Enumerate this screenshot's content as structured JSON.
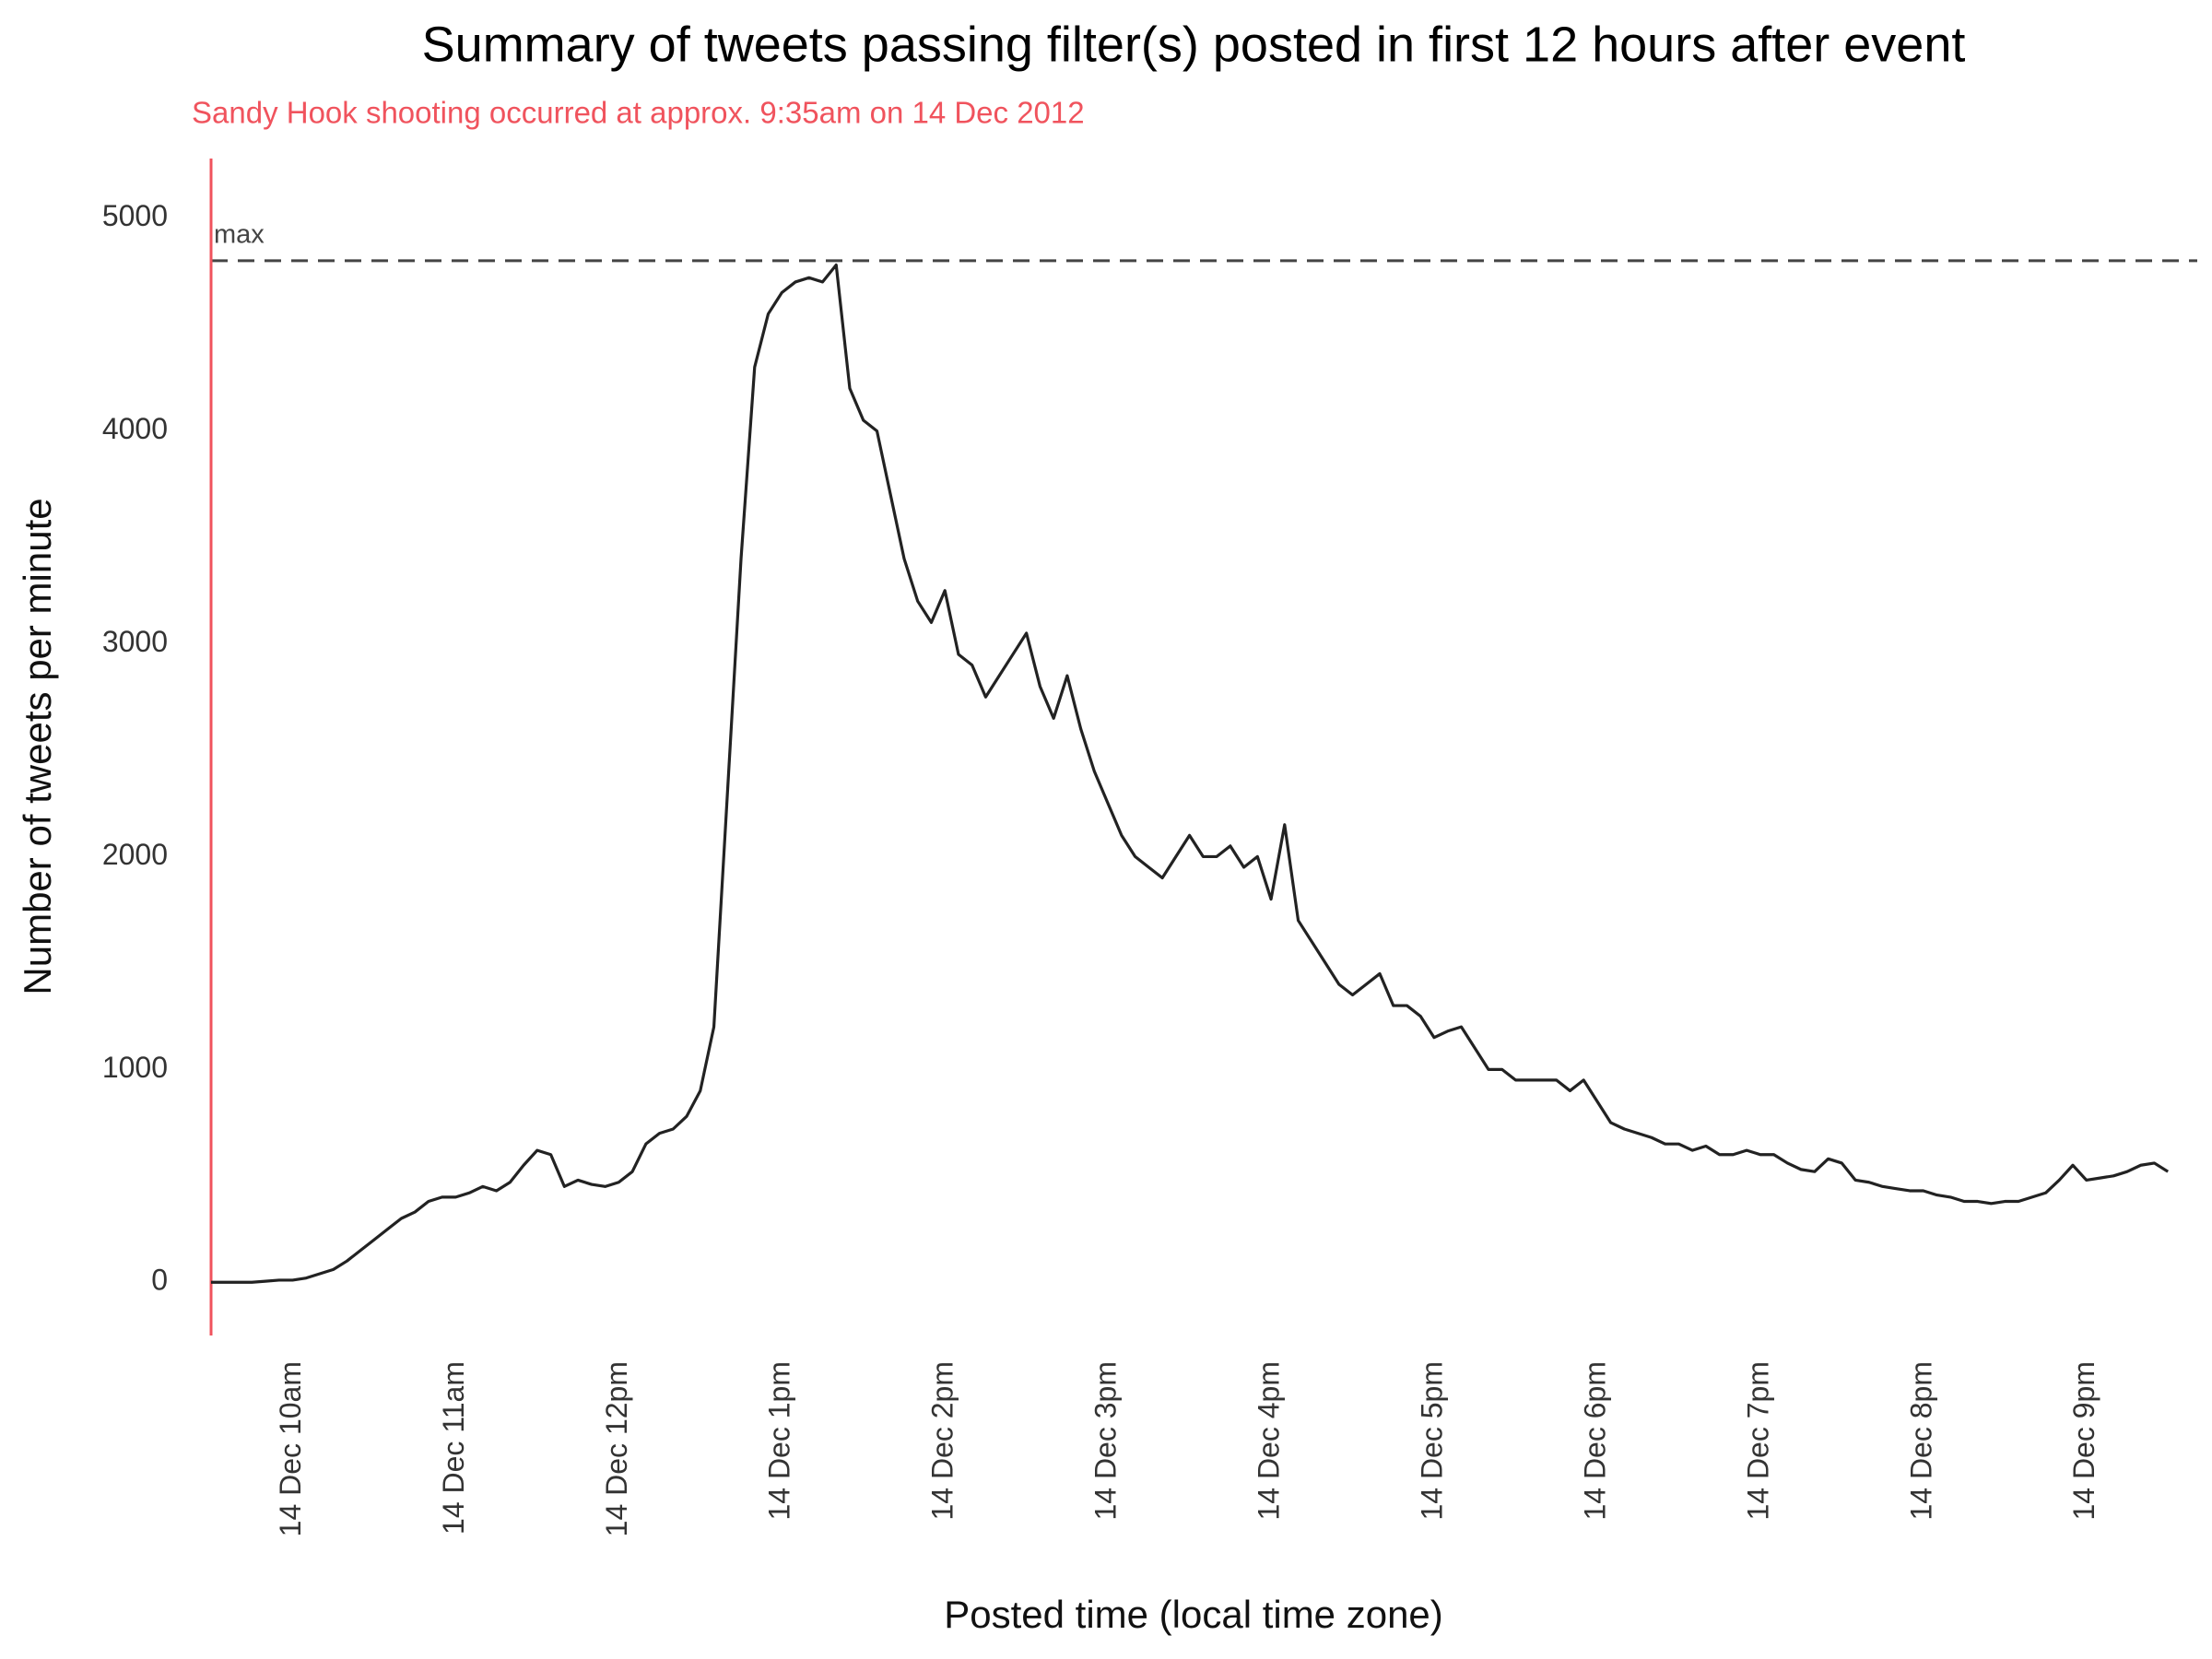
{
  "chart_data": {
    "type": "line",
    "title": "Summary of tweets passing filter(s) posted in first 12 hours after event",
    "subtitle": "Sandy Hook shooting occurred at approx.  9:35am on 14 Dec 2012",
    "x_label": "Posted time (local time zone)",
    "y_label": "Number of tweets per minute",
    "color": "#222222",
    "event_color": "#f0535d",
    "max_line": 4800,
    "max_label": "max",
    "grid": false,
    "xlim": [
      570,
      1294
    ],
    "ylim": [
      -250,
      5280
    ],
    "yticks": [
      0,
      1000,
      2000,
      3000,
      4000,
      5000
    ],
    "xticks": [
      {
        "value": 600,
        "label": "14 Dec 10am"
      },
      {
        "value": 660,
        "label": "14 Dec 11am"
      },
      {
        "value": 720,
        "label": "14 Dec 12pm"
      },
      {
        "value": 780,
        "label": "14 Dec  1pm"
      },
      {
        "value": 840,
        "label": "14 Dec  2pm"
      },
      {
        "value": 900,
        "label": "14 Dec  3pm"
      },
      {
        "value": 960,
        "label": "14 Dec  4pm"
      },
      {
        "value": 1020,
        "label": "14 Dec  5pm"
      },
      {
        "value": 1080,
        "label": "14 Dec  6pm"
      },
      {
        "value": 1140,
        "label": "14 Dec  7pm"
      },
      {
        "value": 1200,
        "label": "14 Dec  8pm"
      },
      {
        "value": 1260,
        "label": "14 Dec  9pm"
      }
    ],
    "x": [
      570,
      575,
      580,
      585,
      590,
      595,
      600,
      605,
      610,
      615,
      620,
      625,
      630,
      635,
      640,
      645,
      650,
      655,
      660,
      665,
      670,
      675,
      680,
      685,
      690,
      695,
      700,
      705,
      710,
      715,
      720,
      725,
      730,
      735,
      740,
      745,
      750,
      755,
      760,
      765,
      770,
      775,
      780,
      785,
      790,
      795,
      800,
      805,
      810,
      815,
      820,
      825,
      830,
      835,
      840,
      845,
      850,
      855,
      860,
      865,
      870,
      875,
      880,
      885,
      890,
      895,
      900,
      905,
      910,
      915,
      920,
      925,
      930,
      935,
      940,
      945,
      950,
      955,
      960,
      965,
      970,
      975,
      980,
      985,
      990,
      995,
      1000,
      1005,
      1010,
      1015,
      1020,
      1025,
      1030,
      1035,
      1040,
      1045,
      1050,
      1055,
      1060,
      1065,
      1070,
      1075,
      1080,
      1085,
      1090,
      1095,
      1100,
      1105,
      1110,
      1115,
      1120,
      1125,
      1130,
      1135,
      1140,
      1145,
      1150,
      1155,
      1160,
      1165,
      1170,
      1175,
      1180,
      1185,
      1190,
      1195,
      1200,
      1205,
      1210,
      1215,
      1220,
      1225,
      1230,
      1235,
      1240,
      1245,
      1250,
      1255,
      1260,
      1265,
      1270,
      1275,
      1280,
      1285,
      1290
    ],
    "values": [
      0,
      0,
      0,
      0,
      5,
      10,
      10,
      20,
      40,
      60,
      100,
      150,
      200,
      250,
      300,
      330,
      380,
      400,
      400,
      420,
      450,
      430,
      470,
      550,
      620,
      600,
      450,
      480,
      460,
      450,
      470,
      520,
      650,
      700,
      720,
      780,
      900,
      1200,
      2300,
      3400,
      4300,
      4550,
      4650,
      4700,
      4720,
      4700,
      4780,
      4200,
      4050,
      4000,
      3700,
      3400,
      3200,
      3100,
      3250,
      2950,
      2900,
      2750,
      2850,
      2950,
      3050,
      2800,
      2650,
      2850,
      2600,
      2400,
      2250,
      2100,
      2000,
      1950,
      1900,
      2000,
      2100,
      2000,
      2000,
      2050,
      1950,
      2000,
      1800,
      2150,
      1700,
      1600,
      1500,
      1400,
      1350,
      1400,
      1450,
      1300,
      1300,
      1250,
      1150,
      1180,
      1200,
      1100,
      1000,
      1000,
      950,
      950,
      950,
      950,
      900,
      950,
      850,
      750,
      720,
      700,
      680,
      650,
      650,
      620,
      640,
      600,
      600,
      620,
      600,
      600,
      560,
      530,
      520,
      580,
      560,
      480,
      470,
      450,
      440,
      430,
      430,
      410,
      400,
      380,
      380,
      370,
      380,
      380,
      400,
      420,
      480,
      550,
      480,
      490,
      500,
      520,
      550,
      560,
      520
    ]
  }
}
